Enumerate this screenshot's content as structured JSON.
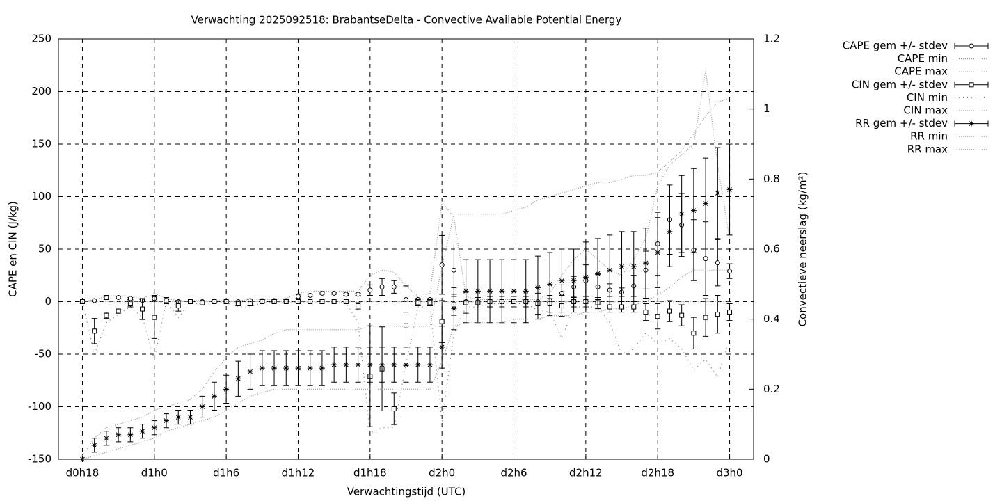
{
  "chart_data": {
    "type": "errorbar-line",
    "title": "Verwachting 2025092518: BrabantseDelta - Convective Available Potential Energy",
    "xlabel": "Verwachtingstijd (UTC)",
    "ylabel": "CAPE en CIN (J/kg)",
    "y2label": "Convectieve neerslag (kg/m²)",
    "x": [
      18,
      19,
      20,
      21,
      22,
      23,
      24,
      25,
      26,
      27,
      28,
      29,
      30,
      31,
      32,
      33,
      34,
      35,
      36,
      37,
      38,
      39,
      40,
      41,
      42,
      43,
      44,
      45,
      46,
      47,
      48,
      49,
      50,
      51,
      52,
      53,
      54,
      55,
      56,
      57,
      58,
      59,
      60,
      61,
      62,
      63,
      64,
      65,
      66,
      67,
      68,
      69,
      70,
      71,
      72
    ],
    "xlim": [
      16,
      74
    ],
    "xticks": [
      {
        "value": 18,
        "label": "d0h18"
      },
      {
        "value": 24,
        "label": "d1h0"
      },
      {
        "value": 30,
        "label": "d1h6"
      },
      {
        "value": 36,
        "label": "d1h12"
      },
      {
        "value": 42,
        "label": "d1h18"
      },
      {
        "value": 48,
        "label": "d2h0"
      },
      {
        "value": 54,
        "label": "d2h6"
      },
      {
        "value": 60,
        "label": "d2h12"
      },
      {
        "value": 66,
        "label": "d2h18"
      },
      {
        "value": 72,
        "label": "d3h0"
      }
    ],
    "ylim": [
      -150,
      250
    ],
    "yticks": [
      -150,
      -100,
      -50,
      0,
      50,
      100,
      150,
      200,
      250
    ],
    "y2lim": [
      0,
      1.2
    ],
    "y2ticks": [
      0,
      0.2,
      0.4,
      0.6,
      0.8,
      1,
      1.2
    ],
    "grid": true,
    "legend": "outside-right",
    "series": [
      {
        "name": "CAPE gem +/- stdev",
        "style": "errorbars",
        "marker": "circle",
        "color": "#000000",
        "values": [
          0,
          1,
          4,
          4,
          3,
          1,
          3,
          1,
          0,
          0,
          0,
          0,
          0,
          0,
          1,
          1,
          1,
          1,
          5,
          6,
          8,
          8,
          7,
          7,
          11,
          14,
          14,
          2,
          2,
          2,
          35,
          30,
          0,
          0,
          0,
          0,
          0,
          0,
          0,
          1,
          8,
          14,
          20,
          14,
          11,
          9,
          15,
          30,
          55,
          78,
          73,
          49,
          41,
          37,
          29
        ],
        "errors": [
          0,
          0,
          2,
          1,
          1,
          1,
          3,
          1,
          0,
          0,
          0,
          0,
          0,
          0,
          1,
          1,
          1,
          1,
          2,
          1,
          1,
          1,
          1,
          1,
          5,
          8,
          6,
          12,
          1,
          1,
          28,
          25,
          1,
          0,
          0,
          0,
          0,
          0,
          0,
          2,
          8,
          10,
          15,
          12,
          6,
          4,
          10,
          18,
          30,
          33,
          30,
          29,
          35,
          22,
          7
        ]
      },
      {
        "name": "CAPE min",
        "style": "dotted",
        "dash": "1 2",
        "color": "#999999",
        "values": [
          0,
          0,
          0,
          0,
          0,
          0,
          0,
          0,
          0,
          0,
          0,
          0,
          0,
          0,
          0,
          0,
          0,
          0,
          0,
          0,
          0,
          0,
          0,
          0,
          0,
          0,
          0,
          0,
          0,
          0,
          0,
          0,
          0,
          0,
          0,
          0,
          0,
          0,
          0,
          0,
          0,
          0,
          0,
          0,
          0,
          0,
          0,
          0,
          0,
          0,
          0,
          0,
          0,
          0,
          0
        ]
      },
      {
        "name": "CAPE max",
        "style": "dotted",
        "dash": "1 2",
        "color": "#999999",
        "values": [
          0,
          2,
          5,
          6,
          5,
          3,
          8,
          3,
          1,
          1,
          1,
          1,
          1,
          1,
          2,
          2,
          2,
          3,
          8,
          10,
          10,
          10,
          10,
          10,
          25,
          30,
          28,
          15,
          5,
          8,
          95,
          80,
          5,
          2,
          2,
          2,
          2,
          2,
          2,
          8,
          25,
          40,
          50,
          40,
          30,
          25,
          40,
          60,
          110,
          130,
          140,
          150,
          220,
          130,
          60
        ]
      },
      {
        "name": "CIN gem +/- stdev",
        "style": "errorbars",
        "marker": "square",
        "color": "#000000",
        "values": [
          0,
          -28,
          -13,
          -9,
          -2,
          -7,
          -15,
          1,
          -4,
          0,
          -1,
          0,
          0,
          -2,
          -2,
          0,
          0,
          0,
          0,
          0,
          0,
          0,
          0,
          -4,
          -71,
          -64,
          -102,
          -23,
          -1,
          -1,
          -19,
          -3,
          -1,
          -1,
          0,
          0,
          0,
          0,
          -2,
          -2,
          -4,
          0,
          0,
          -1,
          -5,
          -5,
          -5,
          -10,
          -14,
          -9,
          -13,
          -30,
          -15,
          -12,
          -10
        ],
        "errors": [
          0,
          12,
          3,
          2,
          3,
          10,
          20,
          3,
          5,
          0,
          1,
          0,
          0,
          2,
          2,
          1,
          1,
          0,
          0,
          0,
          0,
          0,
          0,
          3,
          48,
          40,
          15,
          38,
          3,
          3,
          20,
          10,
          10,
          5,
          5,
          5,
          5,
          5,
          10,
          8,
          10,
          5,
          5,
          5,
          5,
          5,
          5,
          8,
          12,
          10,
          10,
          15,
          18,
          18,
          8
        ]
      },
      {
        "name": "CIN min",
        "style": "dotted",
        "dash": "1 5",
        "color": "#777777",
        "values": [
          0,
          -50,
          -20,
          -12,
          -5,
          -15,
          -55,
          0,
          -15,
          -1,
          -3,
          -1,
          -1,
          -5,
          -5,
          -1,
          -1,
          -1,
          -1,
          -1,
          -1,
          -1,
          -1,
          -20,
          -125,
          -120,
          -120,
          -60,
          -5,
          -5,
          -115,
          -30,
          -5,
          -5,
          -2,
          -2,
          -2,
          -2,
          -8,
          -10,
          -35,
          -5,
          -5,
          -5,
          -20,
          -50,
          -45,
          -30,
          -40,
          -35,
          -45,
          -65,
          -55,
          -72,
          -35
        ]
      },
      {
        "name": "CIN max",
        "style": "dotted",
        "dash": "1 2",
        "color": "#999999",
        "values": [
          0,
          0,
          0,
          0,
          0,
          0,
          0,
          0,
          0,
          0,
          0,
          0,
          0,
          0,
          0,
          0,
          0,
          0,
          0,
          0,
          0,
          0,
          0,
          0,
          0,
          0,
          0,
          0,
          0,
          0,
          0,
          0,
          0,
          0,
          0,
          0,
          0,
          0,
          0,
          0,
          0,
          0,
          0,
          0,
          0,
          0,
          0,
          0,
          0,
          0,
          0,
          0,
          0,
          0,
          0
        ]
      },
      {
        "name": "RR gem +/- stdev",
        "style": "errorbars",
        "marker": "star",
        "color": "#000000",
        "axis": "y2",
        "values": [
          0,
          0.04,
          0.06,
          0.07,
          0.07,
          0.08,
          0.09,
          0.11,
          0.12,
          0.12,
          0.15,
          0.18,
          0.2,
          0.23,
          0.25,
          0.26,
          0.26,
          0.26,
          0.26,
          0.26,
          0.26,
          0.27,
          0.27,
          0.27,
          0.27,
          0.27,
          0.27,
          0.27,
          0.27,
          0.27,
          0.32,
          0.43,
          0.48,
          0.48,
          0.48,
          0.48,
          0.48,
          0.48,
          0.49,
          0.5,
          0.51,
          0.51,
          0.52,
          0.53,
          0.54,
          0.55,
          0.55,
          0.56,
          0.59,
          0.65,
          0.7,
          0.71,
          0.73,
          0.76,
          0.77
        ],
        "errors": [
          0,
          0.02,
          0.02,
          0.02,
          0.02,
          0.02,
          0.02,
          0.02,
          0.02,
          0.02,
          0.03,
          0.04,
          0.04,
          0.05,
          0.05,
          0.05,
          0.05,
          0.05,
          0.05,
          0.05,
          0.05,
          0.05,
          0.05,
          0.05,
          0.05,
          0.05,
          0.05,
          0.05,
          0.05,
          0.05,
          0.06,
          0.06,
          0.09,
          0.09,
          0.09,
          0.09,
          0.09,
          0.09,
          0.09,
          0.09,
          0.09,
          0.09,
          0.1,
          0.1,
          0.1,
          0.1,
          0.1,
          0.1,
          0.1,
          0.1,
          0.11,
          0.12,
          0.13,
          0.13,
          0.13
        ]
      },
      {
        "name": "RR min",
        "style": "dotted",
        "dash": "1 2",
        "color": "#999999",
        "axis": "y2",
        "values": [
          0,
          0.01,
          0.02,
          0.03,
          0.04,
          0.05,
          0.06,
          0.08,
          0.09,
          0.1,
          0.11,
          0.12,
          0.14,
          0.16,
          0.18,
          0.19,
          0.2,
          0.2,
          0.2,
          0.2,
          0.2,
          0.2,
          0.2,
          0.2,
          0.2,
          0.2,
          0.2,
          0.2,
          0.2,
          0.2,
          0.28,
          0.38,
          0.39,
          0.39,
          0.39,
          0.39,
          0.4,
          0.4,
          0.4,
          0.41,
          0.41,
          0.41,
          0.42,
          0.42,
          0.43,
          0.43,
          0.44,
          0.45,
          0.47,
          0.49,
          0.52,
          0.54,
          0.54,
          0.54,
          0.54
        ]
      },
      {
        "name": "RR max",
        "style": "dotted",
        "dash": "1 2",
        "color": "#999999",
        "axis": "y2",
        "values": [
          0.01,
          0.06,
          0.09,
          0.1,
          0.11,
          0.12,
          0.14,
          0.15,
          0.16,
          0.17,
          0.2,
          0.25,
          0.29,
          0.32,
          0.33,
          0.34,
          0.36,
          0.37,
          0.37,
          0.37,
          0.37,
          0.37,
          0.37,
          0.37,
          0.38,
          0.38,
          0.38,
          0.38,
          0.38,
          0.38,
          0.55,
          0.7,
          0.7,
          0.7,
          0.7,
          0.7,
          0.71,
          0.72,
          0.74,
          0.75,
          0.76,
          0.77,
          0.78,
          0.79,
          0.79,
          0.8,
          0.81,
          0.81,
          0.82,
          0.85,
          0.88,
          0.93,
          0.98,
          1.02,
          1.03
        ]
      }
    ]
  }
}
